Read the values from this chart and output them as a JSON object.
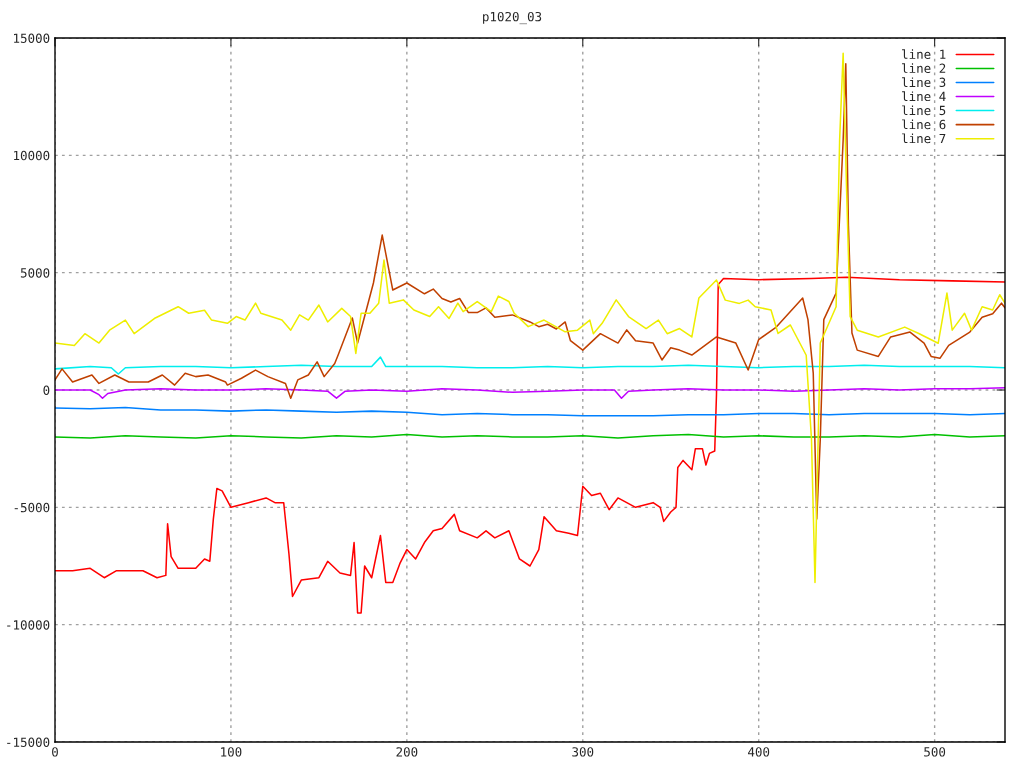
{
  "chart_data": {
    "type": "line",
    "title": "p1020_03",
    "xlim": [
      0,
      540
    ],
    "ylim": [
      -15000,
      15000
    ],
    "xticks": [
      0,
      100,
      200,
      300,
      400,
      500
    ],
    "yticks": [
      -15000,
      -10000,
      -5000,
      0,
      5000,
      10000,
      15000
    ],
    "grid": true,
    "legend": "top right",
    "line_style": "solid",
    "marker": "none",
    "series": [
      {
        "name": "line 1",
        "color": "#ff0000",
        "x": [
          0,
          10,
          20,
          28,
          35,
          50,
          58,
          63,
          64,
          66,
          70,
          80,
          85,
          88,
          90,
          92,
          95,
          100,
          110,
          120,
          125,
          130,
          133,
          135,
          140,
          150,
          155,
          162,
          168,
          170,
          172,
          174,
          176,
          180,
          185,
          188,
          192,
          196,
          200,
          205,
          210,
          215,
          220,
          227,
          230,
          240,
          245,
          250,
          258,
          264,
          270,
          275,
          278,
          285,
          292,
          297,
          300,
          305,
          310,
          315,
          320,
          330,
          340,
          344,
          346,
          350,
          353,
          354,
          357,
          362,
          364,
          368,
          370,
          372,
          375,
          376,
          377,
          380,
          400,
          430,
          450,
          480,
          510,
          540
        ],
        "values": [
          -7700,
          -7700,
          -7600,
          -8000,
          -7700,
          -7700,
          -8000,
          -7900,
          -5700,
          -7100,
          -7600,
          -7600,
          -7200,
          -7300,
          -5500,
          -4200,
          -4300,
          -5000,
          -4800,
          -4600,
          -4800,
          -4800,
          -7000,
          -8800,
          -8100,
          -8000,
          -7300,
          -7800,
          -7900,
          -6500,
          -9500,
          -9500,
          -7500,
          -8000,
          -6200,
          -8200,
          -8200,
          -7400,
          -6800,
          -7200,
          -6500,
          -6000,
          -5900,
          -5300,
          -6000,
          -6300,
          -6000,
          -6300,
          -6000,
          -7200,
          -7500,
          -6800,
          -5400,
          -6000,
          -6100,
          -6200,
          -4100,
          -4500,
          -4400,
          -5100,
          -4600,
          -5000,
          -4800,
          -5000,
          -5600,
          -5200,
          -5000,
          -3300,
          -3000,
          -3400,
          -2500,
          -2500,
          -3200,
          -2700,
          -2600,
          -200,
          4500,
          4750,
          4700,
          4750,
          4800,
          4700,
          4650,
          4600
        ]
      },
      {
        "name": "line 2",
        "color": "#00c000",
        "x": [
          0,
          20,
          40,
          60,
          80,
          100,
          120,
          140,
          160,
          180,
          200,
          220,
          240,
          260,
          280,
          300,
          320,
          340,
          360,
          380,
          400,
          420,
          440,
          460,
          480,
          500,
          520,
          540
        ],
        "values": [
          -2000,
          -2050,
          -1950,
          -2000,
          -2050,
          -1950,
          -2000,
          -2050,
          -1950,
          -2000,
          -1900,
          -2000,
          -1950,
          -2000,
          -2000,
          -1950,
          -2050,
          -1950,
          -1900,
          -2000,
          -1950,
          -2000,
          -2000,
          -1950,
          -2000,
          -1900,
          -2000,
          -1950
        ]
      },
      {
        "name": "line 3",
        "color": "#0080ff",
        "x": [
          0,
          20,
          40,
          60,
          80,
          100,
          120,
          140,
          160,
          180,
          200,
          220,
          240,
          260,
          280,
          300,
          320,
          340,
          360,
          380,
          400,
          420,
          440,
          460,
          480,
          500,
          520,
          540
        ],
        "values": [
          -770,
          -800,
          -750,
          -850,
          -850,
          -900,
          -850,
          -900,
          -950,
          -900,
          -950,
          -1050,
          -1000,
          -1050,
          -1050,
          -1100,
          -1100,
          -1100,
          -1050,
          -1050,
          -1000,
          -1000,
          -1050,
          -1000,
          -1000,
          -1000,
          -1050,
          -1000
        ]
      },
      {
        "name": "line 4",
        "color": "#c000ff",
        "x": [
          0,
          20,
          25,
          27,
          30,
          40,
          60,
          80,
          100,
          120,
          140,
          155,
          160,
          165,
          180,
          200,
          220,
          240,
          260,
          280,
          300,
          318,
          322,
          326,
          340,
          360,
          380,
          400,
          420,
          440,
          460,
          480,
          500,
          520,
          540
        ],
        "values": [
          0,
          0,
          -200,
          -350,
          -150,
          0,
          50,
          0,
          0,
          50,
          0,
          -50,
          -350,
          -50,
          0,
          -50,
          50,
          0,
          -100,
          -50,
          0,
          0,
          -350,
          -50,
          0,
          50,
          0,
          0,
          -50,
          0,
          50,
          0,
          50,
          50,
          100
        ]
      },
      {
        "name": "line 5",
        "color": "#00eeee",
        "x": [
          0,
          20,
          32,
          36,
          40,
          60,
          80,
          100,
          120,
          140,
          160,
          180,
          185,
          188,
          200,
          220,
          240,
          260,
          280,
          300,
          320,
          340,
          360,
          380,
          400,
          420,
          440,
          460,
          480,
          500,
          520,
          540
        ],
        "values": [
          900,
          1000,
          950,
          680,
          950,
          1000,
          1000,
          950,
          1000,
          1050,
          1000,
          1000,
          1400,
          1000,
          1000,
          1000,
          950,
          950,
          1000,
          950,
          1000,
          1000,
          1050,
          1000,
          950,
          1000,
          1000,
          1050,
          1000,
          1000,
          1000,
          950
        ]
      },
      {
        "name": "line 6",
        "color": "#c04000",
        "x": [
          0,
          4,
          10,
          21,
          25,
          34,
          42,
          53,
          61,
          68,
          74,
          80,
          87,
          97,
          98,
          106,
          114,
          121,
          131,
          134,
          138,
          144,
          149,
          153,
          159,
          161,
          169,
          172,
          181,
          186,
          192,
          200,
          210,
          215,
          220,
          225,
          230,
          235,
          240,
          245,
          250,
          260,
          270,
          275,
          280,
          285,
          290,
          293,
          300,
          310,
          320,
          325,
          330,
          340,
          345,
          350,
          355,
          362,
          376,
          387,
          394,
          400,
          410,
          425,
          428,
          431,
          433,
          435,
          437,
          444,
          448,
          449.5,
          451,
          453,
          456,
          468,
          475,
          486,
          494,
          498,
          503,
          508,
          520,
          527,
          533,
          538,
          540
        ],
        "values": [
          430,
          900,
          340,
          640,
          280,
          640,
          340,
          340,
          640,
          210,
          710,
          570,
          640,
          340,
          210,
          500,
          850,
          570,
          280,
          -350,
          430,
          640,
          1200,
          570,
          1130,
          1500,
          3070,
          2000,
          4560,
          6600,
          4260,
          4560,
          4100,
          4300,
          3900,
          3750,
          3900,
          3300,
          3300,
          3500,
          3100,
          3200,
          2900,
          2700,
          2800,
          2600,
          2900,
          2100,
          1700,
          2400,
          2000,
          2560,
          2100,
          2000,
          1280,
          1800,
          1700,
          1490,
          2260,
          2000,
          850,
          2150,
          2680,
          3920,
          3000,
          720,
          -5500,
          -2100,
          3000,
          4130,
          10650,
          13900,
          7000,
          2430,
          1700,
          1430,
          2260,
          2470,
          2000,
          1430,
          1350,
          1900,
          2470,
          3100,
          3250,
          3700,
          3500
        ]
      },
      {
        "name": "line 7",
        "color": "#eeee00",
        "x": [
          0,
          11,
          17,
          25,
          31,
          40,
          45,
          57,
          70,
          76,
          85,
          89,
          98,
          103,
          108,
          114,
          117,
          129,
          134,
          139,
          144,
          150,
          155,
          163,
          168,
          171,
          174,
          179,
          184,
          187,
          190,
          198,
          204,
          213,
          218,
          224,
          229,
          232,
          240,
          248,
          252,
          258,
          261,
          269,
          278,
          290,
          297,
          304,
          306,
          311,
          319,
          326,
          336,
          343,
          348,
          355,
          362,
          366,
          376,
          381,
          389,
          394,
          398,
          407,
          411,
          418,
          427,
          430,
          432,
          435,
          444,
          446,
          448,
          450,
          452,
          456,
          468,
          483,
          491,
          502,
          507,
          510,
          517,
          521,
          527,
          533,
          537,
          540
        ],
        "values": [
          2000,
          1900,
          2400,
          2000,
          2550,
          2980,
          2400,
          3070,
          3550,
          3270,
          3400,
          2980,
          2840,
          3130,
          2980,
          3700,
          3270,
          2980,
          2550,
          3200,
          2980,
          3620,
          2900,
          3480,
          3130,
          1560,
          3270,
          3270,
          3700,
          5540,
          3700,
          3840,
          3410,
          3130,
          3550,
          3050,
          3700,
          3340,
          3770,
          3340,
          4000,
          3770,
          3270,
          2700,
          2980,
          2480,
          2550,
          2980,
          2400,
          2840,
          3840,
          3130,
          2620,
          2980,
          2400,
          2620,
          2260,
          3920,
          4690,
          3830,
          3690,
          3830,
          3550,
          3410,
          2410,
          2770,
          1480,
          -2100,
          -8200,
          2000,
          3550,
          10650,
          14350,
          8400,
          3130,
          2550,
          2260,
          2680,
          2410,
          1990,
          4130,
          2550,
          3270,
          2550,
          3550,
          3410,
          4060,
          3700
        ]
      }
    ]
  }
}
